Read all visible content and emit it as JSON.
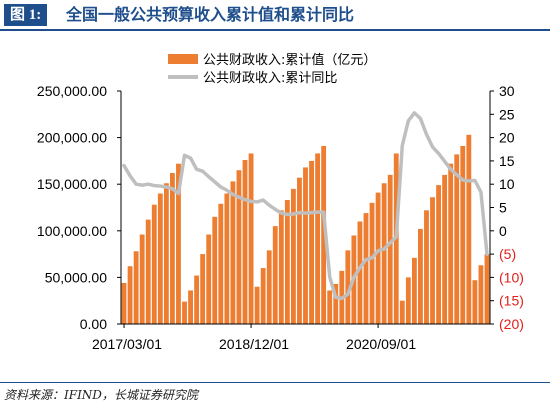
{
  "figure": {
    "label": "图 1:",
    "title": "全国一般公共预算收入累计值和累计同比",
    "source": "资料来源：IFIND，长城证券研究院"
  },
  "colors": {
    "bar": "#ed7d31",
    "line": "#bfbfbf",
    "negative_tick": "#e0201b",
    "accent": "#1f4e8c"
  },
  "chart_data": {
    "type": "bar",
    "grid": false,
    "legend_position": "top-center",
    "x_ticks": [
      "2017/03/01",
      "2018/12/01",
      "2020/09/01"
    ],
    "y_left": {
      "min": 0,
      "max": 250000,
      "step": 50000,
      "tick_labels": [
        "0.00",
        "50,000.00",
        "100,000.00",
        "150,000.00",
        "200,000.00",
        "250,000.00"
      ]
    },
    "y_right": {
      "min": -20,
      "max": 30,
      "step": 5,
      "tick_labels": [
        "(20)",
        "(15)",
        "(10)",
        "(5)",
        "0",
        "5",
        "10",
        "15",
        "20",
        "25",
        "30"
      ]
    },
    "series": [
      {
        "name": "公共财政收入:累计值（亿元）",
        "type": "bar",
        "axis": "left",
        "values": [
          44000,
          62000,
          78000,
          96000,
          112000,
          128000,
          140000,
          151000,
          162000,
          172000,
          24000,
          36000,
          52000,
          75000,
          96000,
          115000,
          129000,
          140000,
          153000,
          165000,
          176000,
          183000,
          40000,
          60000,
          79000,
          105000,
          122000,
          133000,
          145000,
          157000,
          168000,
          175000,
          183000,
          191000,
          36000,
          43000,
          57000,
          79000,
          95000,
          110000,
          119000,
          130000,
          141000,
          151000,
          160000,
          183000,
          25000,
          50000,
          71000,
          102000,
          122000,
          136000,
          149000,
          160000,
          172000,
          182000,
          191000,
          203000,
          47000,
          63000,
          75000
        ]
      },
      {
        "name": "公共财政收入:累计同比",
        "type": "line",
        "axis": "right",
        "values": [
          14,
          11.8,
          10,
          9.8,
          10,
          9.7,
          9.6,
          9.4,
          9,
          8,
          16.2,
          15.6,
          13.2,
          12.8,
          11.6,
          10.5,
          9.4,
          8.7,
          7.8,
          7.2,
          6.7,
          6.3,
          6.2,
          6.6,
          5.5,
          4.6,
          3.8,
          3.5,
          3.6,
          3.9,
          3.8,
          3.9,
          4,
          4,
          -9.9,
          -14.3,
          -14.5,
          -13.6,
          -10,
          -7.9,
          -6.2,
          -5.8,
          -4.3,
          -3.9,
          -2.6,
          -1.3,
          18.3,
          23.6,
          25.3,
          24.1,
          20.7,
          18,
          16.6,
          14.9,
          13.2,
          12,
          10.9,
          10.7,
          10.8,
          8.3,
          -5
        ]
      }
    ]
  }
}
